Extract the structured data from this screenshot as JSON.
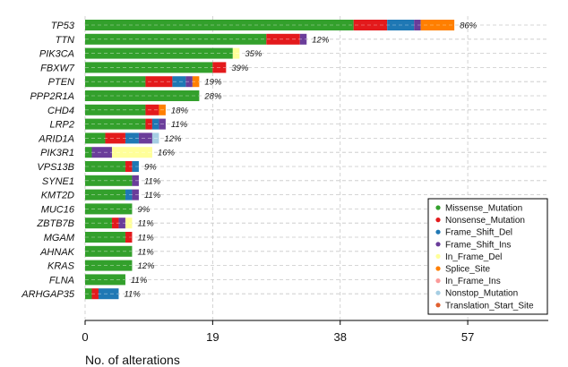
{
  "chart_data": {
    "type": "bar",
    "orientation": "horizontal",
    "stacked": true,
    "xlabel": "No. of alterations",
    "ylabel": "",
    "xlim": [
      0,
      69
    ],
    "xticks": [
      0,
      19,
      38,
      57
    ],
    "grid": true,
    "legend_position": "bottom-right",
    "categories": [
      "TP53",
      "TTN",
      "PIK3CA",
      "FBXW7",
      "PTEN",
      "PPP2R1A",
      "CHD4",
      "LRP2",
      "ARID1A",
      "PIK3R1",
      "VPS13B",
      "SYNE1",
      "KMT2D",
      "MUC16",
      "ZBTB7B",
      "MGAM",
      "AHNAK",
      "KRAS",
      "FLNA",
      "ARHGAP35"
    ],
    "percent_labels": [
      "86%",
      "12%",
      "35%",
      "39%",
      "19%",
      "28%",
      "18%",
      "11%",
      "12%",
      "16%",
      "9%",
      "11%",
      "11%",
      "9%",
      "11%",
      "11%",
      "11%",
      "12%",
      "11%",
      "11%"
    ],
    "series": [
      {
        "name": "Missense_Mutation",
        "color": "#33a02c",
        "values": [
          40,
          27,
          22,
          19,
          9,
          17,
          9,
          9,
          3,
          1,
          6,
          7,
          6,
          7,
          4,
          6,
          7,
          7,
          6,
          1
        ]
      },
      {
        "name": "Nonsense_Mutation",
        "color": "#e31a1c",
        "values": [
          5,
          5,
          0,
          2,
          4,
          0,
          2,
          1,
          3,
          0,
          1,
          0,
          0,
          0,
          1,
          1,
          0,
          0,
          0,
          1
        ]
      },
      {
        "name": "Frame_Shift_Del",
        "color": "#1f78b4",
        "values": [
          4,
          0,
          0,
          0,
          2,
          0,
          0,
          1,
          2,
          0,
          1,
          0,
          1,
          0,
          0,
          0,
          0,
          0,
          0,
          3
        ]
      },
      {
        "name": "Frame_Shift_Ins",
        "color": "#6a3d9a",
        "values": [
          1,
          1,
          0,
          0,
          1,
          0,
          0,
          1,
          2,
          3,
          0,
          1,
          1,
          0,
          1,
          0,
          0,
          0,
          0,
          0
        ]
      },
      {
        "name": "In_Frame_Del",
        "color": "#ffff99",
        "values": [
          0,
          0,
          1,
          0,
          0,
          0,
          0,
          0,
          0,
          6,
          0,
          0,
          0,
          0,
          1,
          0,
          0,
          0,
          0,
          0
        ]
      },
      {
        "name": "Splice_Site",
        "color": "#ff7f00",
        "values": [
          5,
          0,
          0,
          0,
          1,
          0,
          1,
          0,
          0,
          0,
          0,
          0,
          0,
          0,
          0,
          0,
          0,
          0,
          0,
          0
        ]
      },
      {
        "name": "In_Frame_Ins",
        "color": "#fb9a99",
        "values": [
          0,
          0,
          0,
          0,
          0,
          0,
          0,
          0,
          0,
          0,
          0,
          0,
          0,
          0,
          0,
          0,
          0,
          0,
          0,
          0
        ]
      },
      {
        "name": "Nonstop_Mutation",
        "color": "#a6cee3",
        "values": [
          0,
          0,
          0,
          0,
          0,
          0,
          0,
          0,
          1,
          0,
          0,
          0,
          0,
          0,
          0,
          0,
          0,
          0,
          0,
          0
        ]
      },
      {
        "name": "Translation_Start_Site",
        "color": "#e06030",
        "values": [
          0,
          0,
          0,
          0,
          0,
          0,
          0,
          0,
          0,
          0,
          0,
          0,
          0,
          0,
          0,
          0,
          0,
          0,
          0,
          0
        ]
      }
    ]
  }
}
